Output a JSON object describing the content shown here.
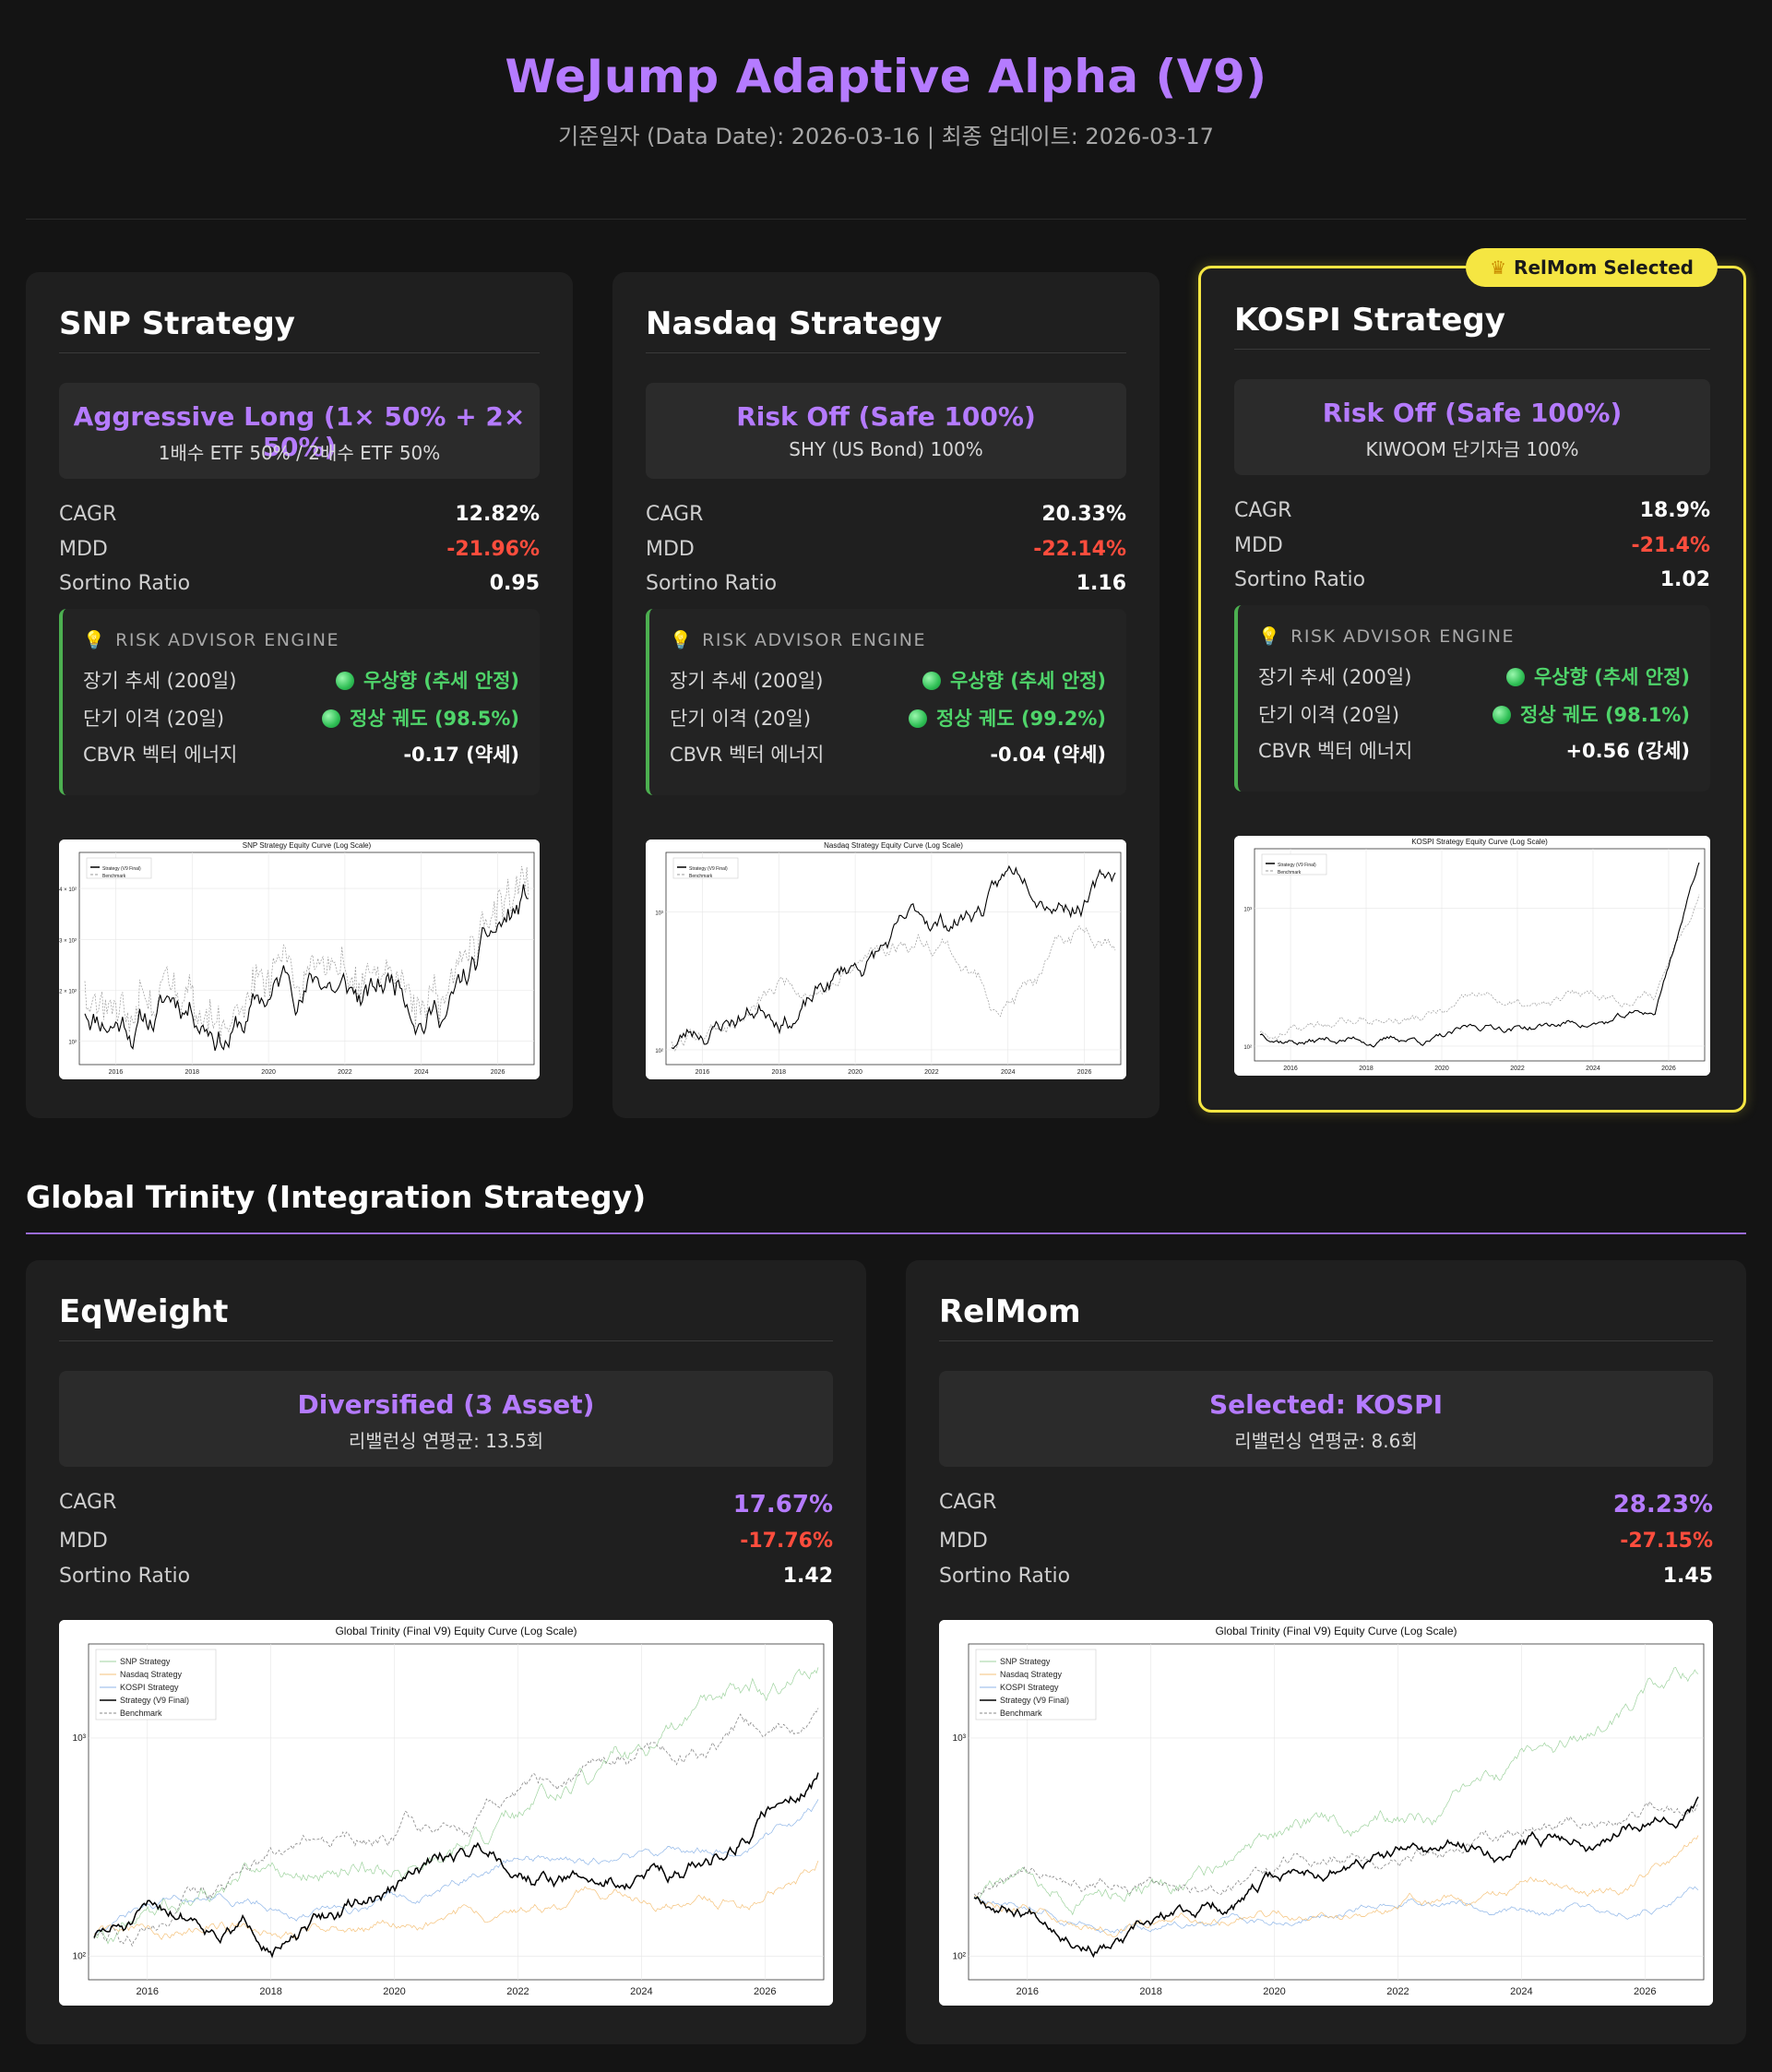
{
  "header": {
    "title": "WeJump Adaptive Alpha (V9)",
    "subtitle": "기준일자 (Data Date): 2026-03-16 | 최종 업데이트: 2026-03-17"
  },
  "risk_header": "RISK ADVISOR ENGINE",
  "labels": {
    "cagr": "CAGR",
    "mdd": "MDD",
    "sortino": "Sortino Ratio",
    "long_trend": "장기 추세 (200일)",
    "short_dev": "단기 이격 (20일)",
    "cbvr": "CBVR 벡터 에너지"
  },
  "strategies": [
    {
      "title": "SNP Strategy",
      "position": "Aggressive Long (1× 50% + 2× 50%)",
      "position_sub": "1배수 ETF 50% / 2배수 ETF 50%",
      "cagr": "12.82%",
      "mdd": "-21.96%",
      "sortino": "0.95",
      "long_trend": "우상향 (추세 안정)",
      "short_dev": "정상 궤도 (98.5%)",
      "cbvr": "-0.17 (약세)",
      "chart": {
        "title": "SNP Strategy Equity Curve (Log Scale)",
        "legend": [
          "Strategy (V9 Final)",
          "Benchmark"
        ],
        "yticks": [
          "4 × 10²",
          "3 × 10²",
          "2 × 10²",
          "10²"
        ],
        "xticks": [
          "2016",
          "2018",
          "2020",
          "2022",
          "2024",
          "2026"
        ]
      }
    },
    {
      "title": "Nasdaq Strategy",
      "position": "Risk Off (Safe 100%)",
      "position_sub": "SHY (US Bond) 100%",
      "cagr": "20.33%",
      "mdd": "-22.14%",
      "sortino": "1.16",
      "long_trend": "우상향 (추세 안정)",
      "short_dev": "정상 궤도 (99.2%)",
      "cbvr": "-0.04 (약세)",
      "chart": {
        "title": "Nasdaq Strategy Equity Curve (Log Scale)",
        "legend": [
          "Strategy (V9 Final)",
          "Benchmark"
        ],
        "yticks": [
          "10³",
          "10²"
        ],
        "xticks": [
          "2016",
          "2018",
          "2020",
          "2022",
          "2024",
          "2026"
        ]
      }
    },
    {
      "title": "KOSPI Strategy",
      "badge": "RelMom Selected",
      "badge_icon": "crown-icon",
      "position": "Risk Off (Safe 100%)",
      "position_sub": "KIWOOM 단기자금 100%",
      "cagr": "18.9%",
      "mdd": "-21.4%",
      "sortino": "1.02",
      "long_trend": "우상향 (추세 안정)",
      "short_dev": "정상 궤도 (98.1%)",
      "cbvr": "+0.56 (강세)",
      "chart": {
        "title": "KOSPI Strategy Equity Curve (Log Scale)",
        "legend": [
          "Strategy (V9 Final)",
          "Benchmark"
        ],
        "yticks": [
          "10³",
          "10²"
        ],
        "xticks": [
          "2016",
          "2018",
          "2020",
          "2022",
          "2024",
          "2026"
        ]
      }
    }
  ],
  "section_title": "Global Trinity (Integration Strategy)",
  "integrations": [
    {
      "title": "EqWeight",
      "position": "Diversified (3 Asset)",
      "position_sub": "리밸런싱 연평균: 13.5회",
      "cagr": "17.67%",
      "mdd": "-17.76%",
      "sortino": "1.42",
      "chart": {
        "title": "Global Trinity (Final V9) Equity Curve (Log Scale)",
        "legend": [
          "SNP Strategy",
          "Nasdaq Strategy",
          "KOSPI Strategy",
          "Strategy (V9 Final)",
          "Benchmark"
        ],
        "yticks": [
          "10³",
          "10²"
        ],
        "xticks": [
          "2016",
          "2018",
          "2020",
          "2022",
          "2024",
          "2026"
        ]
      }
    },
    {
      "title": "RelMom",
      "position": "Selected: KOSPI",
      "position_sub": "리밸런싱 연평균: 8.6회",
      "cagr": "28.23%",
      "mdd": "-27.15%",
      "sortino": "1.45",
      "chart": {
        "title": "Global Trinity (Final V9) Equity Curve (Log Scale)",
        "legend": [
          "SNP Strategy",
          "Nasdaq Strategy",
          "KOSPI Strategy",
          "Strategy (V9 Final)",
          "Benchmark"
        ],
        "yticks": [
          "10³",
          "10²"
        ],
        "xticks": [
          "2016",
          "2018",
          "2020",
          "2022",
          "2024",
          "2026"
        ]
      }
    }
  ],
  "colors": {
    "accent": "#b57bff",
    "negative": "#ff4d3d",
    "positive": "#4fd46a",
    "selected_border": "#f5e642"
  }
}
